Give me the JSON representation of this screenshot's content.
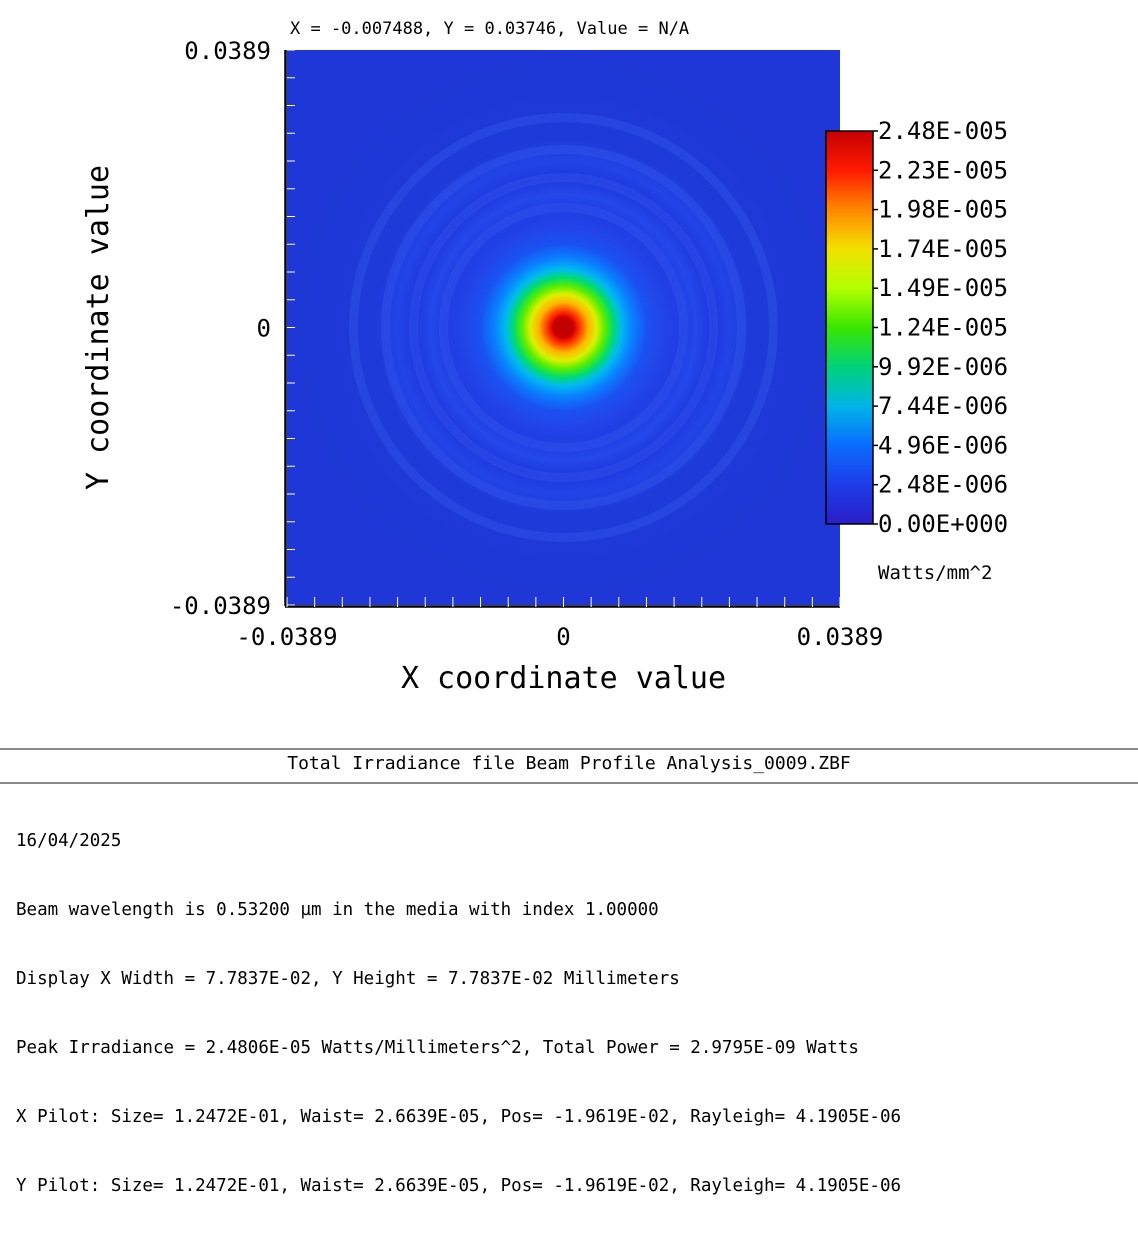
{
  "cursor_readout": "X = -0.007488, Y = 0.03746, Value = N/A",
  "colorbar": {
    "unit": "Watts/mm^2",
    "tick_labels": [
      "2.48E-005",
      "2.23E-005",
      "1.98E-005",
      "1.74E-005",
      "1.49E-005",
      "1.24E-005",
      "9.92E-006",
      "7.44E-006",
      "4.96E-006",
      "2.48E-006",
      "0.00E+000"
    ],
    "colors": [
      "#cc0000",
      "#ff2a00",
      "#ff9900",
      "#e8ee00",
      "#a6ff00",
      "#2fe000",
      "#00d690",
      "#00a8ff",
      "#0058ff",
      "#1a32e6",
      "#2020c8"
    ]
  },
  "chart_data": {
    "type": "heatmap",
    "title": "",
    "xlabel": "X coordinate value",
    "ylabel": "Y coordinate value",
    "xlim": [
      -0.0389,
      0.0389
    ],
    "ylim": [
      -0.0389,
      0.0389
    ],
    "x_tick_labels": [
      "-0.0389",
      "0",
      "0.0389"
    ],
    "y_tick_labels": [
      "0.0389",
      "0",
      "-0.0389"
    ],
    "value_range": [
      0.0,
      2.48e-05
    ],
    "peak_value": 2.48e-05,
    "peak_location": [
      0,
      0
    ],
    "distribution": "radially symmetric beam spot centered at origin with faint diffraction rings"
  },
  "caption": {
    "title": "Total Irradiance file Beam Profile Analysis_0009.ZBF"
  },
  "info_lines": [
    "16/04/2025",
    "Beam wavelength is 0.53200 µm in the media with index 1.00000",
    "Display X Width = 7.7837E-02, Y Height = 7.7837E-02 Millimeters",
    "Peak Irradiance = 2.4806E-05 Watts/Millimeters^2, Total Power = 2.9795E-09 Watts",
    "X Pilot: Size= 1.2472E-01, Waist= 2.6639E-05, Pos= -1.9619E-02, Rayleigh= 4.1905E-06",
    "Y Pilot: Size= 1.2472E-01, Waist= 2.6639E-05, Pos= -1.9619E-02, Rayleigh= 4.1905E-06"
  ]
}
